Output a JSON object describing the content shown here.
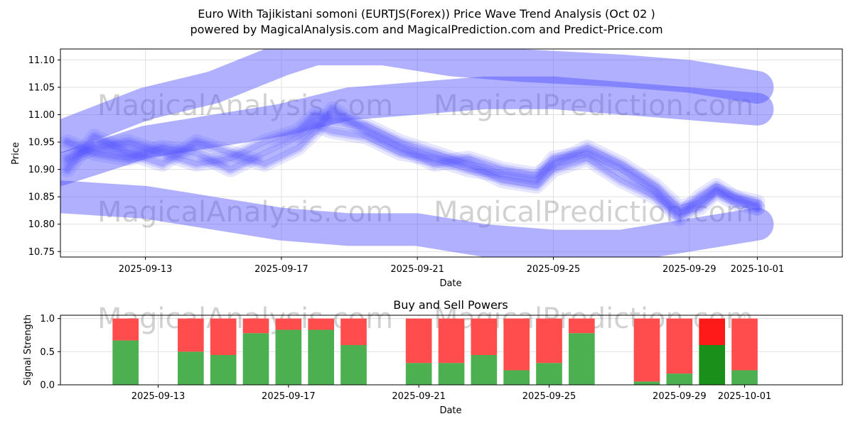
{
  "title_line1": "Euro With Tajikistani somoni (EURTJS(Forex)) Price Wave Trend Analysis (Oct 02 )",
  "title_line2": "powered by MagicalAnalysis.com and MagicalPrediction.com and Predict-Price.com",
  "watermarks": [
    "MagicalAnalysis.com",
    "MagicalPrediction.com"
  ],
  "colors": {
    "wave": "#5050ff",
    "buy": "#4caf50",
    "sell": "#ff4d4d",
    "buy_strong": "#1a8f1a",
    "sell_strong": "#ff1a1a"
  },
  "chart_data": [
    {
      "type": "line",
      "title": "",
      "xlabel": "Date",
      "ylabel": "Price",
      "ylim": [
        10.74,
        11.12
      ],
      "yticks": [
        10.75,
        10.8,
        10.85,
        10.9,
        10.95,
        11.0,
        11.05,
        11.1
      ],
      "ytick_labels": [
        "10.75",
        "10.80",
        "10.85",
        "10.90",
        "10.95",
        "11.00",
        "11.05",
        "11.10"
      ],
      "xlim_days": [
        -2.5,
        20.5
      ],
      "xticks": [
        {
          "day": 0,
          "label": "2025-09-13"
        },
        {
          "day": 4,
          "label": "2025-09-17"
        },
        {
          "day": 8,
          "label": "2025-09-21"
        },
        {
          "day": 12,
          "label": "2025-09-25"
        },
        {
          "day": 16,
          "label": "2025-09-29"
        },
        {
          "day": 18,
          "label": "2025-10-01"
        }
      ],
      "grid": true,
      "bands": [
        {
          "name": "upper wave",
          "points": [
            [
              -2.5,
              10.96
            ],
            [
              0,
              11.02
            ],
            [
              2,
              11.05
            ],
            [
              4,
              11.1
            ],
            [
              5,
              11.12
            ],
            [
              7,
              11.12
            ],
            [
              9,
              11.1
            ],
            [
              11,
              11.09
            ],
            [
              14,
              11.08
            ],
            [
              16,
              11.07
            ],
            [
              18,
              11.05
            ]
          ]
        },
        {
          "name": "mid wave",
          "points": [
            [
              -2.5,
              10.9
            ],
            [
              0,
              10.95
            ],
            [
              2,
              10.97
            ],
            [
              4,
              10.99
            ],
            [
              6,
              11.02
            ],
            [
              8,
              11.03
            ],
            [
              10,
              11.04
            ],
            [
              12,
              11.04
            ],
            [
              14,
              11.03
            ],
            [
              16,
              11.02
            ],
            [
              18,
              11.01
            ]
          ]
        },
        {
          "name": "lower wave",
          "points": [
            [
              -2.5,
              10.85
            ],
            [
              0,
              10.84
            ],
            [
              2,
              10.82
            ],
            [
              4,
              10.8
            ],
            [
              6,
              10.79
            ],
            [
              8,
              10.79
            ],
            [
              10,
              10.77
            ],
            [
              12,
              10.76
            ],
            [
              14,
              10.76
            ],
            [
              16,
              10.78
            ],
            [
              18,
              10.8
            ]
          ]
        }
      ],
      "series": [
        {
          "name": "price path 1",
          "x": [
            -2.3,
            -1.5,
            -0.5,
            0.5,
            1.5,
            2.5,
            3.5,
            4.5,
            5.0,
            5.5,
            6.5,
            7.5,
            8.5,
            9.5,
            10.5,
            11.5,
            12.0,
            13.0,
            14.0,
            15.0,
            15.7,
            16.3,
            16.8,
            17.3,
            18.0
          ],
          "y": [
            10.92,
            10.94,
            10.95,
            10.93,
            10.91,
            10.92,
            10.95,
            10.97,
            11.0,
            10.99,
            10.98,
            10.95,
            10.93,
            10.91,
            10.88,
            10.87,
            10.9,
            10.92,
            10.88,
            10.85,
            10.82,
            10.83,
            10.86,
            10.84,
            10.83
          ]
        },
        {
          "name": "price path 2",
          "x": [
            -2.3,
            -1.5,
            -0.5,
            0.5,
            1.5,
            2.5,
            3.5,
            4.5,
            5.0,
            5.5,
            6.5,
            7.5,
            8.5,
            9.5,
            10.5,
            11.5,
            12.0,
            13.0,
            14.0,
            15.0,
            15.7,
            16.3,
            16.8,
            17.3,
            18.0
          ],
          "y": [
            10.95,
            10.93,
            10.92,
            10.94,
            10.93,
            10.9,
            10.93,
            10.96,
            10.98,
            10.97,
            10.96,
            10.93,
            10.92,
            10.9,
            10.89,
            10.88,
            10.92,
            10.93,
            10.9,
            10.86,
            10.81,
            10.85,
            10.87,
            10.85,
            10.84
          ]
        },
        {
          "name": "price path 3",
          "x": [
            -2.3,
            -1.5,
            -0.5,
            0.5,
            1.5,
            2.5,
            3.5,
            4.5,
            5.0,
            5.5,
            6.5,
            7.5,
            8.5,
            9.5,
            10.5,
            11.5,
            12.0,
            13.0,
            14.0,
            15.0,
            15.7,
            16.3,
            16.8,
            17.3,
            18.0
          ],
          "y": [
            10.9,
            10.96,
            10.93,
            10.91,
            10.95,
            10.93,
            10.91,
            10.94,
            10.97,
            11.01,
            10.97,
            10.94,
            10.91,
            10.92,
            10.9,
            10.89,
            10.91,
            10.94,
            10.91,
            10.87,
            10.83,
            10.84,
            10.86,
            10.85,
            10.83
          ]
        }
      ]
    },
    {
      "type": "bar",
      "title": "Buy and Sell Powers",
      "xlabel": "Date",
      "ylabel": "Signal Strength",
      "ylim": [
        0,
        1.05
      ],
      "yticks": [
        0.0,
        0.5,
        1.0
      ],
      "ytick_labels": [
        "0.0",
        "0.5",
        "1.0"
      ],
      "xlim_days": [
        -3,
        21
      ],
      "xticks": [
        {
          "day": 0,
          "label": "2025-09-13"
        },
        {
          "day": 4,
          "label": "2025-09-17"
        },
        {
          "day": 8,
          "label": "2025-09-21"
        },
        {
          "day": 12,
          "label": "2025-09-25"
        },
        {
          "day": 16,
          "label": "2025-09-29"
        },
        {
          "day": 18,
          "label": "2025-10-01"
        }
      ],
      "bar_width_days": 0.8,
      "bars": [
        {
          "day": -1,
          "buy": 0.67,
          "sell": 0.33
        },
        {
          "day": 1,
          "buy": 0.5,
          "sell": 0.5
        },
        {
          "day": 2,
          "buy": 0.45,
          "sell": 0.55
        },
        {
          "day": 3,
          "buy": 0.78,
          "sell": 0.22
        },
        {
          "day": 4,
          "buy": 0.83,
          "sell": 0.17
        },
        {
          "day": 5,
          "buy": 0.83,
          "sell": 0.17
        },
        {
          "day": 6,
          "buy": 0.6,
          "sell": 0.4
        },
        {
          "day": 8,
          "buy": 0.33,
          "sell": 0.67
        },
        {
          "day": 9,
          "buy": 0.33,
          "sell": 0.67
        },
        {
          "day": 10,
          "buy": 0.45,
          "sell": 0.55
        },
        {
          "day": 11,
          "buy": 0.22,
          "sell": 0.78
        },
        {
          "day": 12,
          "buy": 0.33,
          "sell": 0.67
        },
        {
          "day": 13,
          "buy": 0.78,
          "sell": 0.22
        },
        {
          "day": 15,
          "buy": 0.05,
          "sell": 0.95
        },
        {
          "day": 16,
          "buy": 0.17,
          "sell": 0.83
        },
        {
          "day": 17,
          "buy": 0.6,
          "sell": 0.4,
          "strong": true
        },
        {
          "day": 18,
          "buy": 0.22,
          "sell": 0.78
        }
      ]
    }
  ]
}
